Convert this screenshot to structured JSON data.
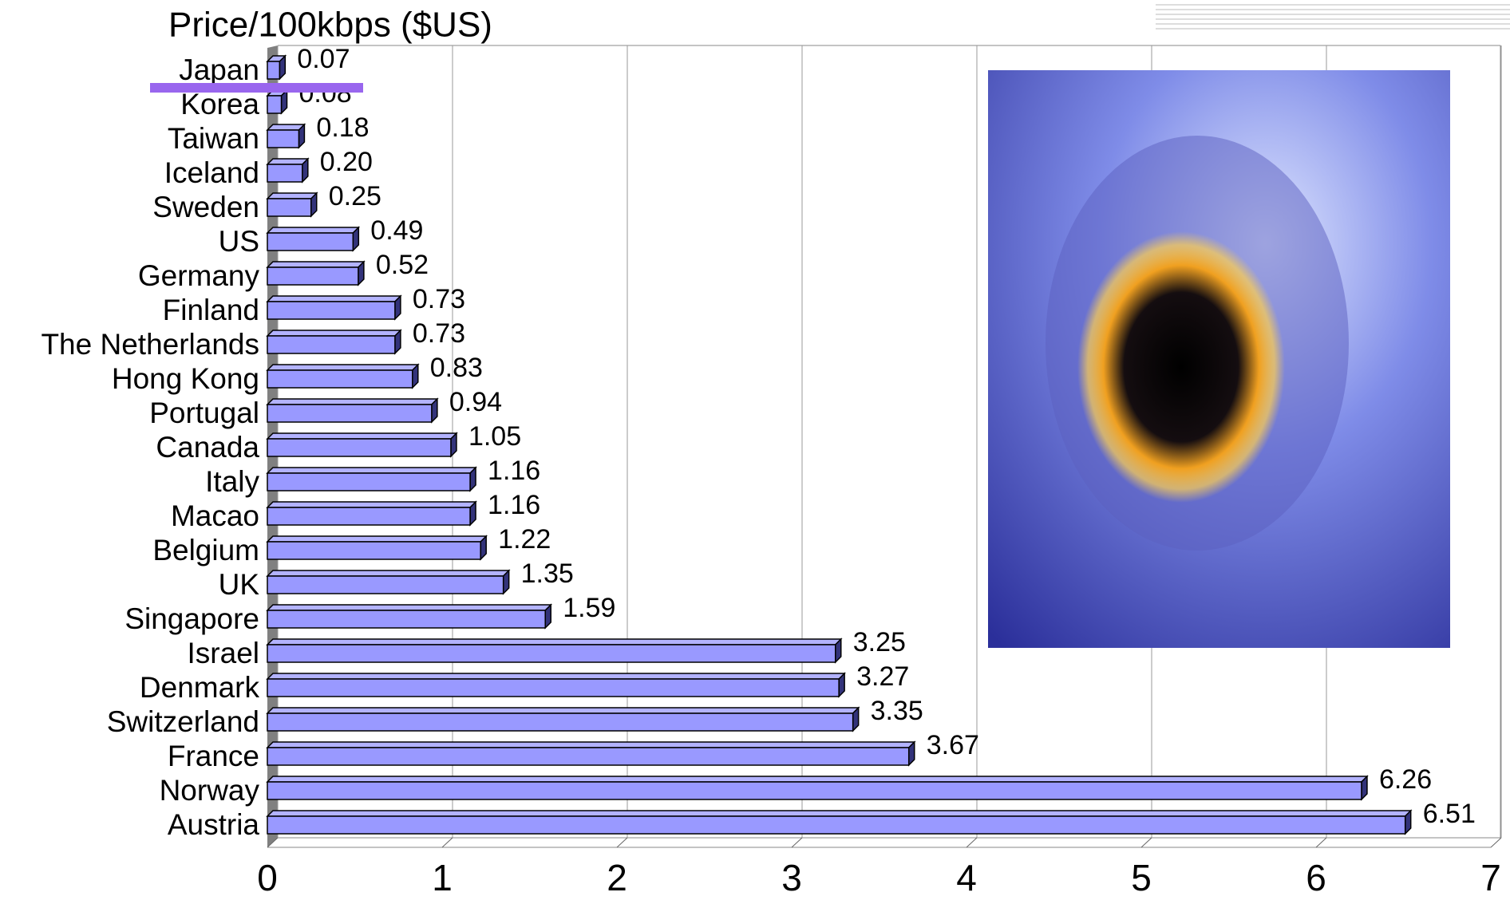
{
  "chart_data": {
    "type": "bar",
    "orientation": "horizontal",
    "title": "Price/100kbps ($US)",
    "categories": [
      "Japan",
      "Korea",
      "Taiwan",
      "Iceland",
      "Sweden",
      "US",
      "Germany",
      "Finland",
      "The Netherlands",
      "Hong Kong",
      "Portugal",
      "Canada",
      "Italy",
      "Macao",
      "Belgium",
      "UK",
      "Singapore",
      "Israel",
      "Denmark",
      "Switzerland",
      "France",
      "Norway",
      "Austria"
    ],
    "values": [
      0.07,
      0.08,
      0.18,
      0.2,
      0.25,
      0.49,
      0.52,
      0.73,
      0.73,
      0.83,
      0.94,
      1.05,
      1.16,
      1.16,
      1.22,
      1.35,
      1.59,
      3.25,
      3.27,
      3.35,
      3.67,
      6.26,
      6.51
    ],
    "value_labels": [
      "0.07",
      "0.08",
      "0.18",
      "0.20",
      "0.25",
      "0.49",
      "0.52",
      "0.73",
      "0.73",
      "0.83",
      "0.94",
      "1.05",
      "1.16",
      "1.16",
      "1.22",
      "1.35",
      "1.59",
      "3.25",
      "3.27",
      "3.35",
      "3.67",
      "6.26",
      "6.51"
    ],
    "color": "#9999ff",
    "xlim": [
      0,
      7
    ],
    "xticks": [
      0,
      1,
      2,
      3,
      4,
      5,
      6,
      7
    ],
    "grid": true
  }
}
